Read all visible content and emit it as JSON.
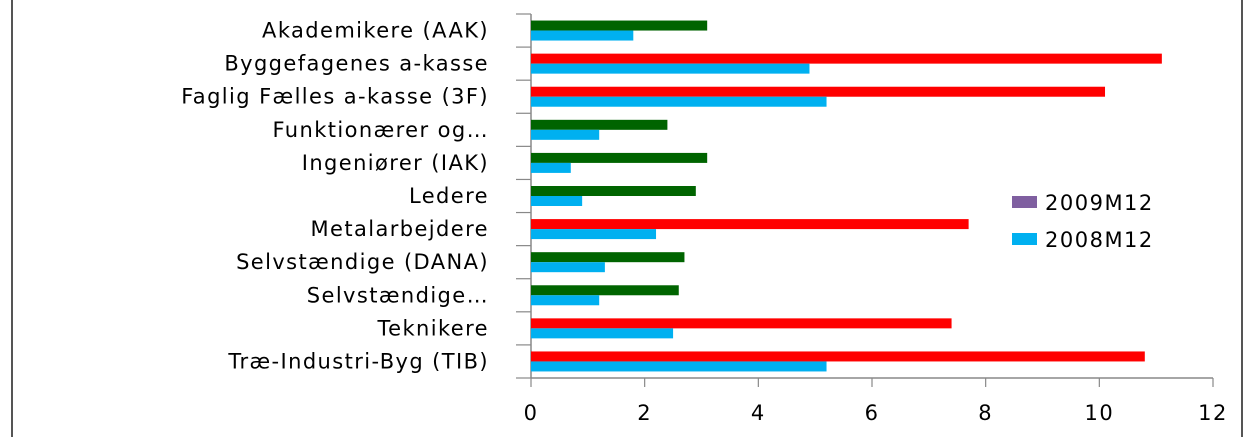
{
  "chart_data": {
    "type": "bar",
    "orientation": "horizontal",
    "categories": [
      "Akademikere (AAK)",
      "Byggefagenes a-kasse",
      "Faglig Fælles a-kasse (3F)",
      "Funktionærer og…",
      "Ingeniører (IAK)",
      "Ledere",
      "Metalarbejdere",
      "Selvstændige (DANA)",
      "Selvstændige…",
      "Teknikere",
      "Træ-Industri-Byg (TIB)"
    ],
    "series": [
      {
        "name": "2009M12",
        "legend_color": "#7f5fa0",
        "values": [
          3.1,
          11.1,
          10.1,
          2.4,
          3.1,
          2.9,
          7.7,
          2.7,
          2.6,
          7.4,
          10.8
        ],
        "bar_colors": [
          "#006400",
          "#ff0000",
          "#ff0000",
          "#006400",
          "#006400",
          "#006400",
          "#ff0000",
          "#006400",
          "#006400",
          "#ff0000",
          "#ff0000"
        ]
      },
      {
        "name": "2008M12",
        "color": "#00b0f0",
        "values": [
          1.8,
          4.9,
          5.2,
          1.2,
          0.7,
          0.9,
          2.2,
          1.3,
          1.2,
          2.5,
          5.2
        ]
      }
    ],
    "xlim": [
      0,
      12
    ],
    "xticks": [
      0,
      2,
      4,
      6,
      8,
      10,
      12
    ],
    "xtick_labels": [
      "0",
      "2",
      "4",
      "6",
      "8",
      "10",
      "12"
    ],
    "title": "",
    "xlabel": "",
    "ylabel": "",
    "grid": false,
    "legend_position": "right"
  }
}
